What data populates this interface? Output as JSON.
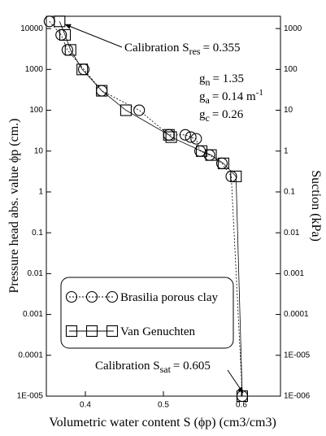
{
  "chart_data": {
    "type": "line",
    "ylabel": "Pressure head abs. value ϕp (cm.)",
    "y2label": "Suction (kPa)",
    "xlabel": "Volumetric water content S (ϕp) (cm3/cm3)",
    "xlim": [
      0.35,
      0.65
    ],
    "xticks": [
      0.4,
      0.5,
      0.6
    ],
    "ylim": [
      1e-05,
      20000
    ],
    "yscale": "log",
    "yticks": [
      10000,
      1000,
      100,
      10,
      1,
      0.1,
      0.01,
      0.001,
      0.0001,
      {
        "value": 1e-05,
        "label": "1E-005"
      }
    ],
    "y2lim": [
      1e-06,
      2000
    ],
    "y2scale": "log",
    "y2ticks": [
      1000,
      100,
      10,
      1,
      0.1,
      0.01,
      0.001,
      0.0001,
      {
        "value": 1e-05,
        "label": "1E-005"
      },
      {
        "value": 1e-06,
        "label": "1E-006"
      }
    ],
    "series": [
      {
        "name": "Brasilia porous clay",
        "marker": "circle",
        "line": "dotted",
        "color": "#000000",
        "x": [
          0.354,
          0.369,
          0.377,
          0.398,
          0.421,
          0.469,
          0.507,
          0.528,
          0.535,
          0.542,
          0.547,
          0.559,
          0.575,
          0.587,
          0.601
        ],
        "values": [
          15000,
          7000,
          3000,
          1000,
          300,
          100,
          25,
          25,
          22,
          20,
          10,
          8,
          5,
          2.4,
          1e-05
        ]
      },
      {
        "name": "Van Genuchten",
        "marker": "square",
        "line": "solid",
        "color": "#000000",
        "x": [
          0.367,
          0.374,
          0.381,
          0.396,
          0.421,
          0.452,
          0.507,
          0.51,
          0.549,
          0.561,
          0.577,
          0.593,
          0.601
        ],
        "values": [
          15000,
          7000,
          3000,
          1000,
          300,
          100,
          25,
          22,
          10,
          8,
          5,
          2.4,
          1e-05
        ]
      }
    ],
    "annotations": [
      {
        "label": "Calibration S",
        "subscript": "res",
        "text": "= 0.355"
      },
      {
        "label": "g",
        "subscript": "n",
        "text": "= 1.35"
      },
      {
        "label": "g",
        "subscript": "a",
        "text": "= 0.14 m",
        "superscript": "-1"
      },
      {
        "label": "g",
        "subscript": "c",
        "text": "= 0.26"
      },
      {
        "label": "Calibration S",
        "subscript": "sat",
        "text": "= 0.605"
      }
    ]
  }
}
